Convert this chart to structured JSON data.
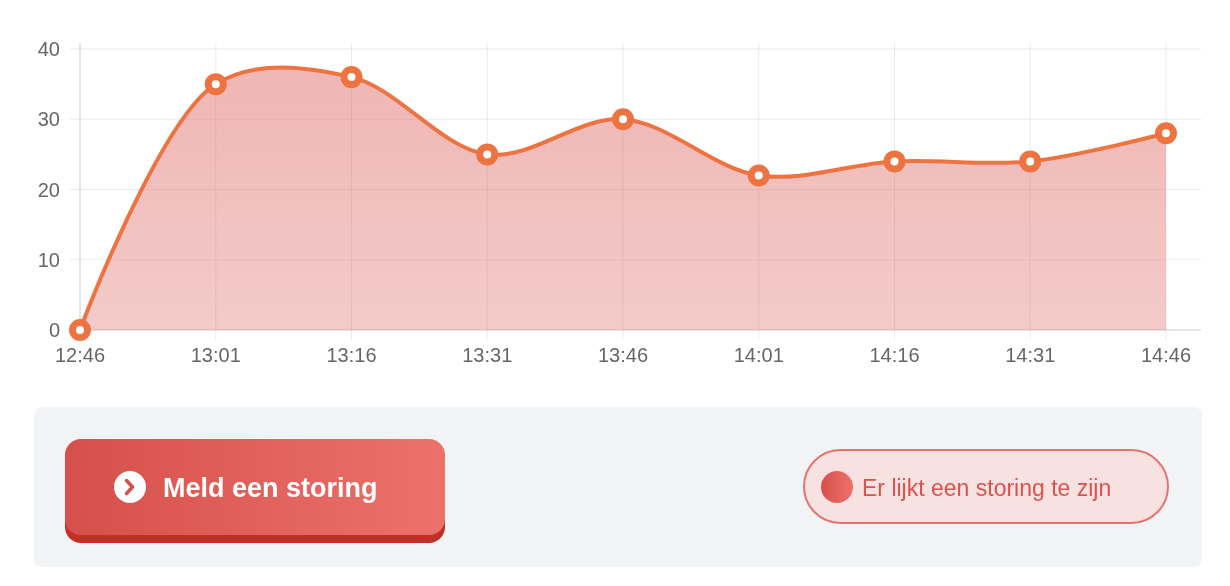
{
  "chart_data": {
    "type": "area",
    "categories": [
      "12:46",
      "13:01",
      "13:16",
      "13:31",
      "13:46",
      "14:01",
      "14:16",
      "14:31",
      "14:46"
    ],
    "series": [
      {
        "color": "#ed7440",
        "values": [
          0,
          35,
          36,
          25,
          30,
          22,
          24,
          24,
          28
        ]
      }
    ],
    "ylim": [
      0,
      40
    ],
    "yticks": [
      0,
      10,
      20,
      30,
      40
    ],
    "grid": true,
    "marker": "circle",
    "annotations": [
      "Meld een storing",
      "Er lijkt een storing te zijn"
    ]
  }
}
